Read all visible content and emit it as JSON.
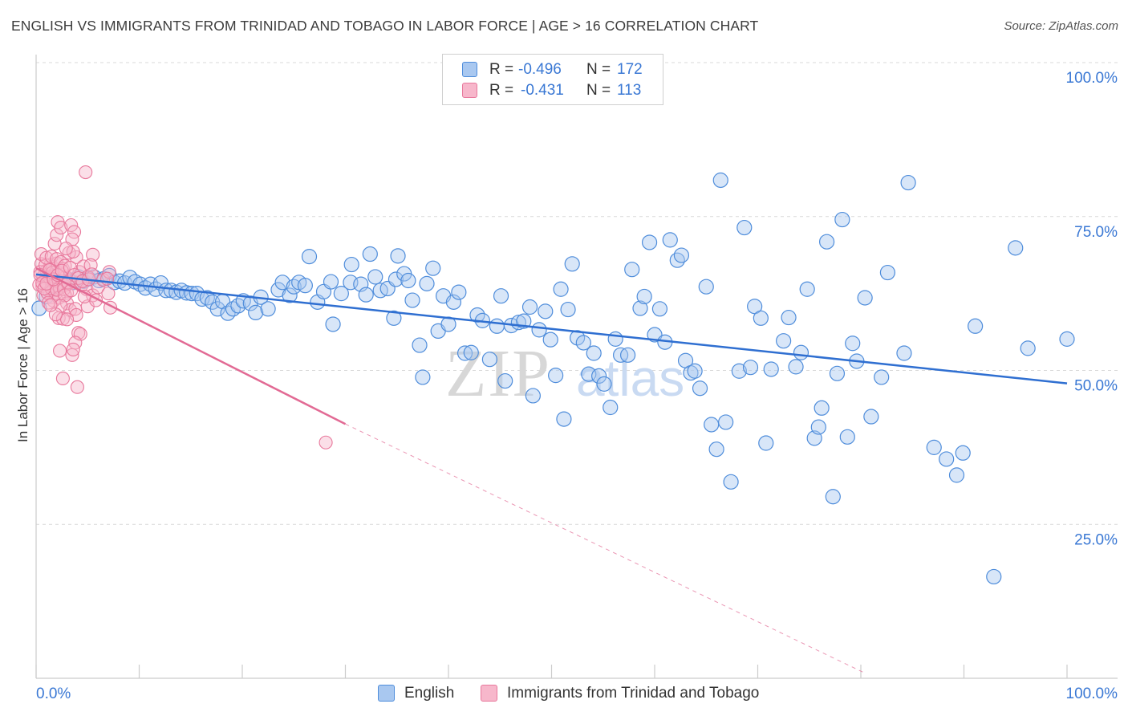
{
  "header": {
    "title": "ENGLISH VS IMMIGRANTS FROM TRINIDAD AND TOBAGO IN LABOR FORCE | AGE > 16 CORRELATION CHART",
    "source": "Source: ZipAtlas.com"
  },
  "legend": {
    "rows": [
      {
        "r_label": "R =",
        "r_value": "-0.496",
        "n_label": "N =",
        "n_value": "172"
      },
      {
        "r_label": "R =",
        "r_value": "-0.431",
        "n_label": "N =",
        "n_value": "113"
      }
    ]
  },
  "bottom_legend": {
    "english": "English",
    "trinidad": "Immigrants from Trinidad and Tobago"
  },
  "colors": {
    "english_fill": "#a9c8f0",
    "english_stroke": "#4f8ddb",
    "english_line": "#2f6fd1",
    "trinidad_fill": "#f7b7cb",
    "trinidad_stroke": "#e8789c",
    "trinidad_line": "#e26a94",
    "axis_label": "#3a78d4",
    "grid": "#d9d9d9"
  },
  "chart_data": {
    "type": "scatter",
    "title": "ENGLISH VS IMMIGRANTS FROM TRINIDAD AND TOBAGO IN LABOR FORCE | AGE > 16 CORRELATION CHART",
    "xlabel": "",
    "ylabel": "In Labor Force | Age > 16",
    "xlim": [
      0,
      100
    ],
    "ylim": [
      0,
      100
    ],
    "x_tick_labels": [
      "0.0%",
      "100.0%"
    ],
    "y_ticks": [
      25,
      50,
      75,
      100
    ],
    "y_tick_labels": [
      "25.0%",
      "50.0%",
      "75.0%",
      "100.0%"
    ],
    "grid": true,
    "watermark": "ZIPatlas",
    "series": [
      {
        "name": "English",
        "r": -0.496,
        "n": 172,
        "trend": {
          "x": [
            0,
            100
          ],
          "y": [
            65.6,
            47.9
          ]
        },
        "points": [
          [
            0.3,
            60.1
          ],
          [
            1.0,
            62.0
          ],
          [
            1.6,
            63.6
          ],
          [
            2.1,
            64.5
          ],
          [
            2.6,
            63.9
          ],
          [
            3.1,
            64.8
          ],
          [
            3.6,
            64.3
          ],
          [
            4.1,
            65.2
          ],
          [
            4.6,
            64.5
          ],
          [
            5.1,
            64.9
          ],
          [
            5.6,
            65.2
          ],
          [
            6.1,
            64.6
          ],
          [
            6.6,
            64.9
          ],
          [
            7.1,
            65.4
          ],
          [
            7.6,
            64.3
          ],
          [
            8.1,
            64.5
          ],
          [
            8.6,
            64.2
          ],
          [
            9.1,
            65.1
          ],
          [
            9.6,
            64.4
          ],
          [
            10.1,
            64.0
          ],
          [
            10.6,
            63.4
          ],
          [
            11.1,
            64.0
          ],
          [
            11.6,
            63.2
          ],
          [
            12.1,
            64.2
          ],
          [
            12.6,
            63.0
          ],
          [
            13.1,
            63.0
          ],
          [
            13.6,
            62.7
          ],
          [
            14.1,
            63.0
          ],
          [
            14.6,
            62.6
          ],
          [
            15.1,
            62.5
          ],
          [
            15.6,
            62.5
          ],
          [
            16.1,
            61.6
          ],
          [
            16.6,
            61.8
          ],
          [
            17.1,
            61.1
          ],
          [
            17.6,
            60.0
          ],
          [
            18.1,
            61.2
          ],
          [
            18.6,
            59.3
          ],
          [
            19.1,
            60.0
          ],
          [
            19.6,
            60.5
          ],
          [
            20.1,
            61.3
          ],
          [
            20.8,
            60.9
          ],
          [
            21.3,
            59.4
          ],
          [
            21.8,
            61.9
          ],
          [
            22.5,
            60.0
          ],
          [
            23.5,
            63.1
          ],
          [
            23.9,
            64.3
          ],
          [
            24.6,
            62.2
          ],
          [
            25.0,
            63.6
          ],
          [
            25.5,
            64.3
          ],
          [
            26.1,
            63.8
          ],
          [
            26.5,
            68.5
          ],
          [
            27.3,
            61.1
          ],
          [
            27.9,
            62.8
          ],
          [
            28.6,
            64.4
          ],
          [
            28.8,
            57.5
          ],
          [
            29.6,
            62.5
          ],
          [
            30.5,
            64.3
          ],
          [
            30.6,
            67.2
          ],
          [
            31.5,
            64.0
          ],
          [
            32.0,
            62.3
          ],
          [
            32.4,
            68.9
          ],
          [
            32.9,
            65.2
          ],
          [
            33.4,
            63.0
          ],
          [
            34.1,
            63.3
          ],
          [
            34.7,
            58.5
          ],
          [
            34.9,
            64.8
          ],
          [
            35.1,
            68.6
          ],
          [
            35.7,
            65.7
          ],
          [
            36.1,
            64.6
          ],
          [
            36.5,
            61.4
          ],
          [
            37.2,
            54.1
          ],
          [
            37.5,
            48.9
          ],
          [
            37.9,
            64.1
          ],
          [
            38.5,
            66.6
          ],
          [
            39.0,
            56.4
          ],
          [
            39.5,
            62.1
          ],
          [
            40.0,
            57.5
          ],
          [
            40.5,
            61.1
          ],
          [
            41.0,
            62.7
          ],
          [
            41.6,
            52.8
          ],
          [
            42.2,
            52.9
          ],
          [
            42.8,
            59.0
          ],
          [
            43.3,
            58.1
          ],
          [
            44.0,
            51.8
          ],
          [
            44.7,
            57.2
          ],
          [
            45.1,
            62.1
          ],
          [
            45.5,
            48.3
          ],
          [
            46.1,
            57.3
          ],
          [
            46.8,
            57.8
          ],
          [
            47.3,
            58.0
          ],
          [
            47.9,
            60.3
          ],
          [
            48.2,
            45.9
          ],
          [
            48.8,
            56.6
          ],
          [
            49.4,
            59.6
          ],
          [
            49.9,
            55.0
          ],
          [
            50.4,
            49.2
          ],
          [
            50.9,
            63.2
          ],
          [
            51.2,
            42.1
          ],
          [
            51.6,
            59.9
          ],
          [
            52.0,
            67.3
          ],
          [
            52.5,
            55.3
          ],
          [
            53.1,
            54.5
          ],
          [
            53.6,
            49.4
          ],
          [
            54.1,
            52.8
          ],
          [
            54.6,
            49.1
          ],
          [
            55.1,
            47.8
          ],
          [
            55.7,
            44.0
          ],
          [
            56.2,
            55.1
          ],
          [
            56.7,
            52.5
          ],
          [
            57.4,
            52.5
          ],
          [
            57.8,
            66.4
          ],
          [
            58.6,
            60.1
          ],
          [
            59.0,
            62.0
          ],
          [
            59.5,
            70.8
          ],
          [
            60.0,
            55.8
          ],
          [
            60.5,
            60.0
          ],
          [
            61.0,
            54.6
          ],
          [
            61.5,
            71.2
          ],
          [
            62.2,
            67.9
          ],
          [
            62.6,
            68.7
          ],
          [
            63.0,
            51.6
          ],
          [
            63.5,
            49.6
          ],
          [
            63.9,
            49.9
          ],
          [
            64.4,
            47.1
          ],
          [
            65.0,
            63.6
          ],
          [
            65.5,
            41.2
          ],
          [
            66.0,
            37.2
          ],
          [
            66.4,
            80.9
          ],
          [
            66.9,
            41.6
          ],
          [
            67.4,
            31.9
          ],
          [
            68.2,
            49.9
          ],
          [
            68.7,
            73.2
          ],
          [
            69.3,
            50.5
          ],
          [
            69.7,
            60.4
          ],
          [
            70.3,
            58.5
          ],
          [
            70.8,
            38.2
          ],
          [
            71.3,
            50.2
          ],
          [
            72.5,
            54.8
          ],
          [
            73.0,
            58.6
          ],
          [
            73.7,
            50.6
          ],
          [
            74.2,
            52.9
          ],
          [
            74.8,
            63.2
          ],
          [
            75.5,
            39.0
          ],
          [
            75.9,
            40.8
          ],
          [
            76.2,
            43.9
          ],
          [
            76.7,
            70.9
          ],
          [
            77.3,
            29.5
          ],
          [
            77.7,
            49.5
          ],
          [
            78.2,
            74.5
          ],
          [
            78.7,
            39.2
          ],
          [
            79.2,
            54.4
          ],
          [
            79.6,
            51.5
          ],
          [
            80.4,
            61.8
          ],
          [
            81.0,
            42.5
          ],
          [
            82.0,
            48.9
          ],
          [
            82.6,
            65.9
          ],
          [
            84.2,
            52.8
          ],
          [
            84.6,
            80.5
          ],
          [
            87.1,
            37.5
          ],
          [
            88.3,
            35.6
          ],
          [
            89.3,
            33.0
          ],
          [
            89.9,
            36.6
          ],
          [
            91.1,
            57.2
          ],
          [
            92.9,
            16.5
          ],
          [
            95.0,
            69.9
          ],
          [
            96.2,
            53.6
          ],
          [
            100.0,
            55.1
          ]
        ]
      },
      {
        "name": "Immigrants from Trinidad and Tobago",
        "r": -0.431,
        "n": 113,
        "trend": {
          "x": [
            0,
            30
          ],
          "y": [
            66.6,
            41.3
          ]
        },
        "trend_dashed": {
          "x": [
            30,
            80.2
          ],
          "y": [
            41.3,
            1.0
          ]
        },
        "points": [
          [
            0.5,
            67.3
          ],
          [
            0.7,
            65.3
          ],
          [
            0.9,
            65.0
          ],
          [
            1.1,
            64.0
          ],
          [
            1.3,
            62.8
          ],
          [
            1.5,
            61.9
          ],
          [
            1.7,
            61.3
          ],
          [
            1.9,
            62.5
          ],
          [
            2.1,
            63.8
          ],
          [
            0.6,
            63.7
          ],
          [
            0.8,
            64.5
          ],
          [
            1.0,
            66.2
          ],
          [
            1.2,
            65.7
          ],
          [
            1.4,
            67.2
          ],
          [
            1.6,
            66.8
          ],
          [
            1.8,
            65.4
          ],
          [
            2.0,
            67.4
          ],
          [
            2.2,
            64.3
          ],
          [
            0.4,
            66.0
          ],
          [
            0.9,
            67.1
          ],
          [
            1.3,
            64.9
          ],
          [
            1.7,
            63.7
          ],
          [
            2.3,
            65.8
          ],
          [
            2.5,
            64.0
          ],
          [
            0.5,
            68.9
          ],
          [
            1.0,
            68.3
          ],
          [
            1.5,
            68.5
          ],
          [
            2.0,
            68.1
          ],
          [
            2.4,
            67.6
          ],
          [
            0.7,
            62.2
          ],
          [
            1.1,
            62.6
          ],
          [
            1.5,
            63.3
          ],
          [
            1.9,
            64.6
          ],
          [
            2.3,
            63.4
          ],
          [
            2.7,
            63.8
          ],
          [
            2.9,
            65.2
          ],
          [
            2.6,
            66.5
          ],
          [
            3.0,
            62.6
          ],
          [
            3.1,
            64.1
          ],
          [
            2.8,
            67.0
          ],
          [
            2.2,
            61.8
          ],
          [
            1.8,
            70.6
          ],
          [
            2.0,
            72.0
          ],
          [
            2.1,
            74.1
          ],
          [
            2.4,
            73.2
          ],
          [
            3.4,
            73.6
          ],
          [
            3.7,
            72.5
          ],
          [
            3.5,
            71.3
          ],
          [
            3.9,
            68.4
          ],
          [
            4.2,
            66.0
          ],
          [
            4.6,
            66.9
          ],
          [
            5.0,
            65.2
          ],
          [
            5.5,
            68.8
          ],
          [
            5.3,
            67.1
          ],
          [
            3.2,
            69.1
          ],
          [
            3.6,
            69.3
          ],
          [
            4.0,
            64.2
          ],
          [
            4.4,
            63.8
          ],
          [
            4.9,
            63.2
          ],
          [
            3.0,
            60.9
          ],
          [
            3.3,
            59.8
          ],
          [
            3.8,
            60.0
          ],
          [
            3.9,
            59.0
          ],
          [
            2.2,
            58.5
          ],
          [
            2.6,
            58.4
          ],
          [
            3.0,
            58.3
          ],
          [
            4.1,
            56.1
          ],
          [
            4.3,
            55.9
          ],
          [
            3.8,
            54.5
          ],
          [
            2.3,
            53.2
          ],
          [
            3.5,
            52.5
          ],
          [
            3.6,
            53.4
          ],
          [
            2.6,
            48.7
          ],
          [
            4.0,
            47.3
          ],
          [
            5.0,
            60.4
          ],
          [
            5.5,
            62.2
          ],
          [
            6.0,
            63.5
          ],
          [
            6.5,
            64.7
          ],
          [
            7.0,
            62.5
          ],
          [
            7.2,
            60.2
          ],
          [
            7.1,
            66.0
          ],
          [
            4.8,
            82.2
          ],
          [
            6.9,
            64.9
          ],
          [
            5.8,
            61.4
          ],
          [
            2.9,
            69.8
          ],
          [
            1.2,
            61.0
          ],
          [
            1.6,
            65.9
          ],
          [
            2.0,
            63.1
          ],
          [
            0.3,
            63.9
          ],
          [
            0.4,
            65.5
          ],
          [
            0.6,
            64.2
          ],
          [
            0.8,
            63.3
          ],
          [
            1.0,
            64.1
          ],
          [
            1.3,
            66.3
          ],
          [
            1.7,
            64.8
          ],
          [
            2.1,
            65.5
          ],
          [
            2.5,
            66.2
          ],
          [
            2.7,
            63.2
          ],
          [
            3.1,
            64.3
          ],
          [
            3.3,
            66.7
          ],
          [
            3.7,
            65.5
          ],
          [
            4.1,
            65.0
          ],
          [
            4.5,
            64.5
          ],
          [
            2.8,
            62.2
          ],
          [
            2.4,
            60.5
          ],
          [
            1.9,
            59.1
          ],
          [
            1.4,
            60.6
          ],
          [
            4.7,
            62.0
          ],
          [
            5.1,
            64.8
          ],
          [
            5.4,
            65.6
          ],
          [
            3.4,
            63.0
          ],
          [
            28.1,
            38.3
          ]
        ]
      }
    ]
  }
}
